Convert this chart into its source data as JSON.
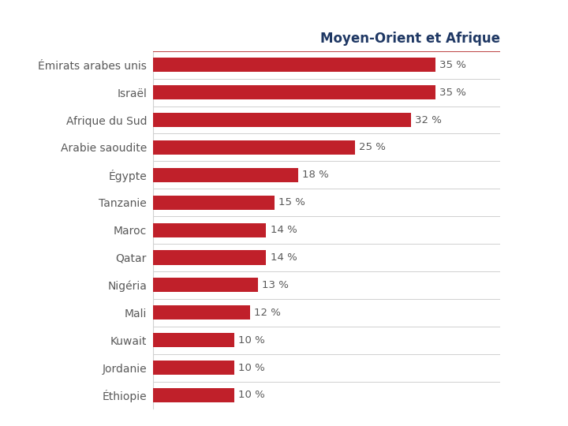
{
  "title": "Moyen-Orient et Afrique",
  "title_color": "#1F3864",
  "title_fontsize": 12,
  "categories": [
    "Éthiopie",
    "Jordanie",
    "Kuwait",
    "Mali",
    "Nigéria",
    "Qatar",
    "Maroc",
    "Tanzanie",
    "Égypte",
    "Arabie saoudite",
    "Afrique du Sud",
    "Israël",
    "Émirats arabes unis"
  ],
  "values": [
    10,
    10,
    10,
    12,
    13,
    14,
    14,
    15,
    18,
    25,
    32,
    35,
    35
  ],
  "bar_color": "#C0202A",
  "label_color": "#595959",
  "background_color": "#FFFFFF",
  "bar_height": 0.52,
  "xlim": [
    0,
    43
  ],
  "label_fontsize": 9.5,
  "tick_fontsize": 10,
  "separator_color": "#D0D0D0",
  "top_line_color": "#B22222"
}
